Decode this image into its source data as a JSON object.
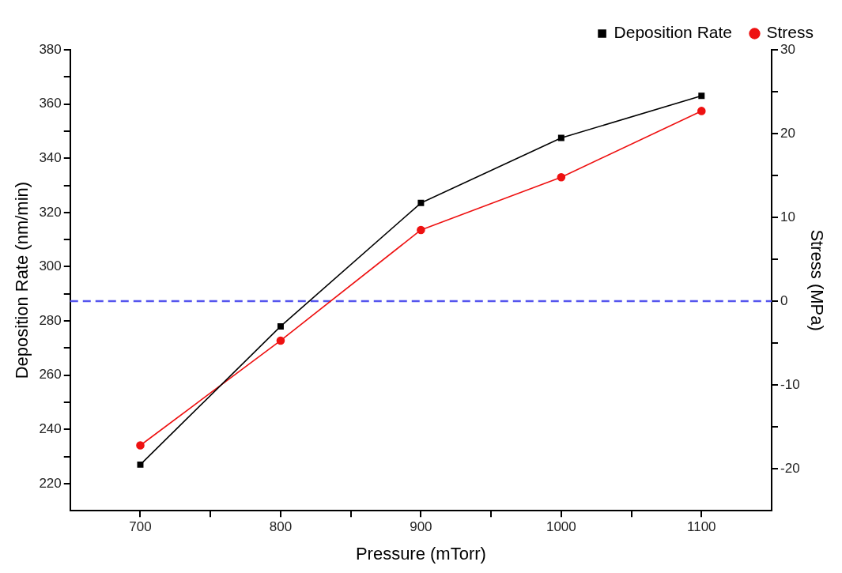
{
  "chart_data": {
    "type": "line",
    "xlabel": "Pressure (mTorr)",
    "ylabel": "Deposition Rate (nm/min)",
    "y2label": "Stress (MPa)",
    "x": [
      700,
      800,
      900,
      1000,
      1100
    ],
    "series": [
      {
        "name": "Deposition Rate",
        "color": "#000000",
        "marker": "square",
        "values": [
          227,
          278,
          323.5,
          347.5,
          363
        ]
      },
      {
        "name": "Stress",
        "color": "#ee1111",
        "marker": "circle",
        "axis": "y2",
        "values": [
          -17.2,
          -4.7,
          8.5,
          14.8,
          22.7
        ]
      }
    ],
    "xlim": [
      650,
      1150
    ],
    "xticks": [
      700,
      {
        "value": 750,
        "label": null
      },
      800,
      {
        "value": 850,
        "label": null
      },
      900,
      {
        "value": 950,
        "label": null
      },
      1000,
      {
        "value": 1050,
        "label": null
      },
      1100
    ],
    "ylim": [
      210,
      380
    ],
    "yticks": [
      220,
      {
        "value": 230,
        "label": null
      },
      240,
      {
        "value": 250,
        "label": null
      },
      260,
      {
        "value": 270,
        "label": null
      },
      280,
      {
        "value": 290,
        "label": null
      },
      300,
      {
        "value": 310,
        "label": null
      },
      320,
      {
        "value": 330,
        "label": null
      },
      340,
      {
        "value": 350,
        "label": null
      },
      360,
      {
        "value": 370,
        "label": null
      },
      380
    ],
    "y2lim": [
      -25,
      30
    ],
    "y2ticks": [
      -20,
      {
        "value": -15,
        "label": null
      },
      -10,
      {
        "value": -5,
        "label": null
      },
      0,
      {
        "value": 5,
        "label": null
      },
      10,
      {
        "value": 15,
        "label": null
      },
      20,
      {
        "value": 25,
        "label": null
      },
      30
    ],
    "ref_lines": [
      {
        "axis": "y2",
        "value": 0,
        "color": "#5555ee",
        "line_style": "dashed"
      }
    ],
    "grid": false,
    "legend": "top right",
    "line_style": "solid"
  }
}
